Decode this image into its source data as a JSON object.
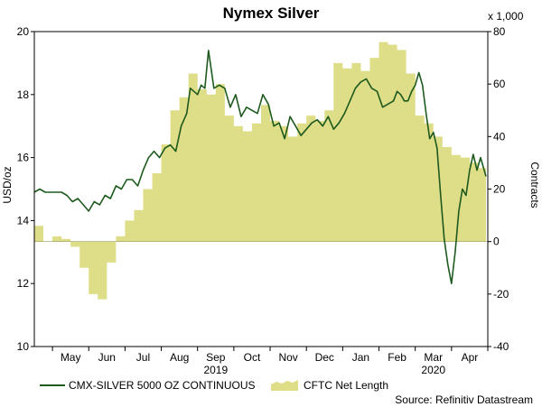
{
  "chart_data": {
    "type": "line+area",
    "title": "Nymex Silver",
    "left_axis": {
      "label": "USD/oz",
      "ylim": [
        10,
        20
      ],
      "ticks": [
        10,
        12,
        14,
        16,
        18,
        20
      ]
    },
    "right_axis": {
      "label": "Contracts",
      "multiplier": "x 1,000",
      "ylim": [
        -40,
        80
      ],
      "ticks": [
        -40,
        -20,
        0,
        20,
        40,
        60,
        80
      ]
    },
    "x_axis": {
      "months": [
        "May",
        "Jun",
        "Jul",
        "Aug",
        "Sep",
        "Oct",
        "Nov",
        "Dec",
        "Jan",
        "Feb",
        "Mar",
        "Apr"
      ],
      "years": [
        {
          "label": "2019",
          "at_month": "Sep"
        },
        {
          "label": "2020",
          "at_month": "Mar"
        }
      ]
    },
    "x_range": [
      0,
      12.5
    ],
    "series": [
      {
        "name": "CMX-SILVER 5000 OZ CONTINUOUS",
        "axis": "left",
        "style": "line",
        "color": "#1e5a1e",
        "x": [
          0,
          0.15,
          0.3,
          0.45,
          0.6,
          0.75,
          0.9,
          1.05,
          1.2,
          1.35,
          1.5,
          1.65,
          1.8,
          1.95,
          2.1,
          2.25,
          2.4,
          2.55,
          2.7,
          2.85,
          3.0,
          3.15,
          3.3,
          3.45,
          3.6,
          3.75,
          3.9,
          4.05,
          4.2,
          4.3,
          4.4,
          4.5,
          4.6,
          4.7,
          4.8,
          4.95,
          5.1,
          5.25,
          5.4,
          5.55,
          5.7,
          5.85,
          6.0,
          6.15,
          6.3,
          6.45,
          6.6,
          6.75,
          6.9,
          7.05,
          7.2,
          7.35,
          7.5,
          7.65,
          7.8,
          7.95,
          8.1,
          8.25,
          8.4,
          8.55,
          8.7,
          8.85,
          9.0,
          9.15,
          9.3,
          9.45,
          9.6,
          9.75,
          9.9,
          10.0,
          10.1,
          10.2,
          10.3,
          10.4,
          10.5,
          10.6,
          10.7,
          10.8,
          10.9,
          11.0,
          11.1,
          11.2,
          11.3,
          11.4,
          11.5,
          11.6,
          11.7,
          11.8,
          11.9,
          12.0,
          12.1,
          12.2,
          12.3,
          12.45
        ],
        "values": [
          14.9,
          15.0,
          14.9,
          14.9,
          14.9,
          14.9,
          14.8,
          14.6,
          14.7,
          14.5,
          14.3,
          14.6,
          14.5,
          14.8,
          14.7,
          15.1,
          15.0,
          15.3,
          15.3,
          15.1,
          15.6,
          16.0,
          16.2,
          16.0,
          16.3,
          16.4,
          16.2,
          17.0,
          17.4,
          18.2,
          18.1,
          18.0,
          18.3,
          18.2,
          19.4,
          18.2,
          18.3,
          18.2,
          17.6,
          18.0,
          17.3,
          17.6,
          17.5,
          17.4,
          18.0,
          17.7,
          17.0,
          17.1,
          16.6,
          17.3,
          17.0,
          16.7,
          16.9,
          17.1,
          17.2,
          17.0,
          17.3,
          16.9,
          17.1,
          17.4,
          17.8,
          18.2,
          18.4,
          18.5,
          18.2,
          18.1,
          17.6,
          17.7,
          17.8,
          18.1,
          18.0,
          17.8,
          17.8,
          18.1,
          18.3,
          18.7,
          18.3,
          17.4,
          16.6,
          16.8,
          16.3,
          14.8,
          13.4,
          12.6,
          12.0,
          13.0,
          14.3,
          15.0,
          14.8,
          15.6,
          16.1,
          15.6,
          16.0,
          15.4
        ]
      },
      {
        "name": "CFTC Net Length",
        "axis": "right",
        "style": "area",
        "color": "#dedd88",
        "x": [
          0,
          0.25,
          0.5,
          0.75,
          1.0,
          1.25,
          1.5,
          1.75,
          2.0,
          2.25,
          2.5,
          2.75,
          3.0,
          3.25,
          3.5,
          3.75,
          4.0,
          4.25,
          4.5,
          4.75,
          5.0,
          5.25,
          5.5,
          5.75,
          6.0,
          6.25,
          6.5,
          6.75,
          7.0,
          7.25,
          7.5,
          7.75,
          8.0,
          8.25,
          8.5,
          8.75,
          9.0,
          9.25,
          9.5,
          9.75,
          10.0,
          10.25,
          10.5,
          10.75,
          11.0,
          11.25,
          11.5,
          11.75,
          12.0,
          12.25,
          12.45
        ],
        "values": [
          6,
          0,
          2,
          1,
          -2,
          -10,
          -20,
          -22,
          -8,
          2,
          8,
          12,
          20,
          26,
          37,
          50,
          55,
          64,
          58,
          56,
          60,
          48,
          44,
          42,
          45,
          52,
          46,
          44,
          40,
          45,
          48,
          46,
          50,
          68,
          66,
          68,
          65,
          70,
          76,
          75,
          73,
          64,
          48,
          45,
          40,
          36,
          33,
          32,
          30,
          28,
          26
        ]
      }
    ],
    "legend": [
      {
        "label": "CMX-SILVER 5000 OZ CONTINUOUS",
        "swatch": "line"
      },
      {
        "label": "CFTC Net Length",
        "swatch": "area"
      }
    ],
    "source": "Source: Refinitiv Datastream"
  }
}
